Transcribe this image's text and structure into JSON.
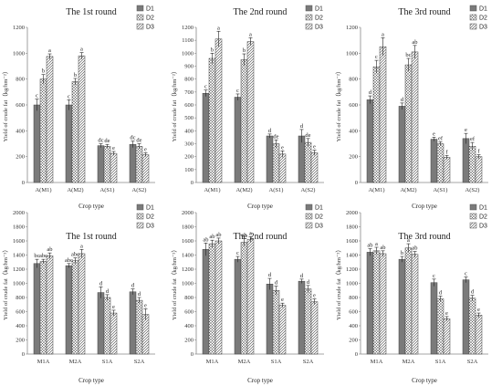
{
  "series_names": [
    "D1",
    "D2",
    "D3"
  ],
  "colors": {
    "D1": "#7a7a7a",
    "D2": "#c8c8c8",
    "D3": "#ffffff",
    "axis": "#888888"
  },
  "chart_data": [
    {
      "type": "bar",
      "title": "The 1st round",
      "xlabel": "Crop type",
      "ylabel": "Yield of crude fat（kg/hm⁻²）",
      "ylim": [
        0,
        1200
      ],
      "yticks": [
        0,
        200,
        400,
        600,
        800,
        1000,
        1200
      ],
      "categories": [
        "A(M1)",
        "A(M2)",
        "A(S1)",
        "A(S2)"
      ],
      "series": [
        {
          "name": "D1",
          "values": [
            600,
            600,
            285,
            295
          ],
          "errors": [
            45,
            40,
            15,
            25
          ]
        },
        {
          "name": "D2",
          "values": [
            800,
            780,
            280,
            280
          ],
          "errors": [
            35,
            25,
            15,
            20
          ]
        },
        {
          "name": "D3",
          "values": [
            975,
            980,
            225,
            215
          ],
          "errors": [
            20,
            25,
            15,
            15
          ]
        }
      ],
      "letters": [
        [
          "c",
          "b",
          "a"
        ],
        [
          "c",
          "b",
          "a"
        ],
        [
          "dc",
          "de",
          "e"
        ],
        [
          "dc",
          "de",
          "e"
        ]
      ]
    },
    {
      "type": "bar",
      "title": "The 2nd round",
      "xlabel": "Crop type",
      "ylabel": "Yield of crude fat（kg/hm⁻²）",
      "ylim": [
        0,
        1200
      ],
      "yticks": [
        0,
        100,
        200,
        300,
        400,
        500,
        600,
        700,
        800,
        900,
        1000,
        1100,
        1200
      ],
      "categories": [
        "A(M1)",
        "A(M2)",
        "A(S1)",
        "A(S2)"
      ],
      "series": [
        {
          "name": "D1",
          "values": [
            690,
            660,
            360,
            360
          ],
          "errors": [
            25,
            25,
            15,
            50
          ]
        },
        {
          "name": "D2",
          "values": [
            960,
            950,
            300,
            310
          ],
          "errors": [
            40,
            45,
            30,
            30
          ]
        },
        {
          "name": "D3",
          "values": [
            1110,
            1090,
            220,
            230
          ],
          "errors": [
            60,
            30,
            25,
            20
          ]
        }
      ],
      "letters": [
        [
          "c",
          "b",
          "a"
        ],
        [
          "c",
          "b",
          "a"
        ],
        [
          "d",
          "de",
          "e"
        ],
        [
          "d",
          "de",
          "e"
        ]
      ]
    },
    {
      "type": "bar",
      "title": "The 3rd round",
      "xlabel": "Crop type",
      "ylabel": "Yield of crude fat（kg/hm⁻²）",
      "ylim": [
        0,
        1200
      ],
      "yticks": [
        0,
        200,
        400,
        600,
        800,
        1000,
        1200
      ],
      "categories": [
        "A(M1)",
        "A(M2)",
        "A(S1)",
        "A(S2)"
      ],
      "series": [
        {
          "name": "D1",
          "values": [
            640,
            590,
            335,
            340
          ],
          "errors": [
            30,
            25,
            15,
            40
          ]
        },
        {
          "name": "D2",
          "values": [
            895,
            910,
            300,
            280
          ],
          "errors": [
            50,
            50,
            15,
            30
          ]
        },
        {
          "name": "D3",
          "values": [
            1050,
            1010,
            195,
            200
          ],
          "errors": [
            70,
            50,
            15,
            15
          ]
        }
      ],
      "letters": [
        [
          "d",
          "c",
          "a"
        ],
        [
          "d",
          "bc",
          "ab"
        ],
        [
          "e",
          "ef",
          "f"
        ],
        [
          "e",
          "ef",
          "f"
        ]
      ]
    },
    {
      "type": "bar",
      "title": "The 1st round",
      "xlabel": "Crop type",
      "ylabel": "Yield of crude fat（kg/hm⁻²）",
      "ylim": [
        0,
        2000
      ],
      "yticks": [
        0,
        200,
        400,
        600,
        800,
        1000,
        1200,
        1400,
        1600,
        1800,
        2000
      ],
      "categories": [
        "M1A",
        "M2A",
        "S1A",
        "S2A"
      ],
      "series": [
        {
          "name": "D1",
          "values": [
            1280,
            1250,
            870,
            880
          ],
          "errors": [
            60,
            30,
            80,
            40
          ]
        },
        {
          "name": "D2",
          "values": [
            1310,
            1320,
            800,
            760
          ],
          "errors": [
            30,
            40,
            40,
            40
          ]
        },
        {
          "name": "D3",
          "values": [
            1390,
            1420,
            580,
            560
          ],
          "errors": [
            40,
            60,
            40,
            80
          ]
        }
      ],
      "letters": [
        [
          "bc",
          "abc",
          "ab"
        ],
        [
          "abc",
          "abc",
          "a"
        ],
        [
          "d",
          "d",
          "e"
        ],
        [
          "d",
          "d",
          "e"
        ]
      ]
    },
    {
      "type": "bar",
      "title": "The 2nd round",
      "xlabel": "Crop type",
      "ylabel": "Yield of crude fat（kg/hm⁻²）",
      "ylim": [
        0,
        2000
      ],
      "yticks": [
        0,
        200,
        400,
        600,
        800,
        1000,
        1200,
        1400,
        1600,
        1800,
        2000
      ],
      "categories": [
        "M1A",
        "M2A",
        "S1A",
        "S2A"
      ],
      "series": [
        {
          "name": "D1",
          "values": [
            1480,
            1340,
            990,
            1030
          ],
          "errors": [
            90,
            40,
            80,
            30
          ]
        },
        {
          "name": "D2",
          "values": [
            1560,
            1580,
            900,
            920
          ],
          "errors": [
            50,
            50,
            60,
            50
          ]
        },
        {
          "name": "D3",
          "values": [
            1600,
            1620,
            690,
            740
          ],
          "errors": [
            40,
            40,
            30,
            40
          ]
        }
      ],
      "letters": [
        [
          "ab",
          "ab",
          "ab"
        ],
        [
          "c",
          "ab",
          "a"
        ],
        [
          "d",
          "d",
          "e"
        ],
        [
          "d",
          "d",
          "e"
        ]
      ]
    },
    {
      "type": "bar",
      "title": "The 3rd round",
      "xlabel": "Crop type",
      "ylabel": "Yield of crude fat（kg/hm⁻²）",
      "ylim": [
        0,
        2000
      ],
      "yticks": [
        0,
        200,
        400,
        600,
        800,
        1000,
        1200,
        1400,
        1600,
        1800,
        2000
      ],
      "categories": [
        "M1A",
        "M2A",
        "S1A",
        "S2A"
      ],
      "series": [
        {
          "name": "D1",
          "values": [
            1440,
            1340,
            1010,
            1050
          ],
          "errors": [
            50,
            40,
            50,
            40
          ]
        },
        {
          "name": "D2",
          "values": [
            1460,
            1500,
            780,
            790
          ],
          "errors": [
            50,
            60,
            40,
            40
          ]
        },
        {
          "name": "D3",
          "values": [
            1420,
            1410,
            500,
            550
          ],
          "errors": [
            40,
            40,
            30,
            30
          ]
        }
      ],
      "letters": [
        [
          "ab",
          "a",
          "ab"
        ],
        [
          "b",
          "a",
          "ab"
        ],
        [
          "c",
          "d",
          "e"
        ],
        [
          "c",
          "d",
          "e"
        ]
      ]
    }
  ]
}
